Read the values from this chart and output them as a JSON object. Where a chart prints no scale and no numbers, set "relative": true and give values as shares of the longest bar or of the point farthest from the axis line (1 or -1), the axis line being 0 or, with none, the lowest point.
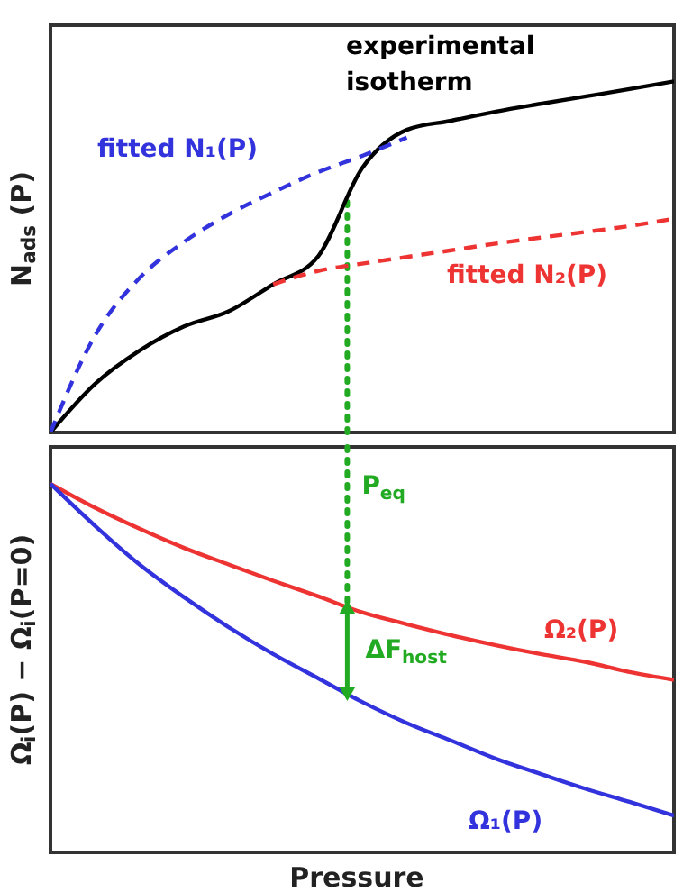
{
  "chart_data": [
    {
      "type": "line",
      "relative": true,
      "ylabel": "N$_{ads}$ (P)",
      "legend": false,
      "categories": [
        null,
        null,
        null,
        null,
        null,
        null,
        null,
        null,
        null,
        null,
        null,
        null,
        null,
        null,
        null
      ],
      "series": [
        {
          "name": "experimental isotherm",
          "color": "#000000",
          "line_style": "solid",
          "values": [
            0,
            0.138,
            0.233,
            0.302,
            0.345,
            0.422,
            0.5,
            0.753,
            0.862,
            0.888,
            0.914,
            0.936,
            0.957,
            0.978,
            1
          ]
        },
        {
          "name": "fitted N₁(P)",
          "color": "#3333dd",
          "line_style": "dashed",
          "values": [
            0,
            0.276,
            0.44,
            0.543,
            0.621,
            0.684,
            0.741,
            0.788,
            0.84,
            null,
            null,
            null,
            null,
            null,
            null
          ]
        },
        {
          "name": "fitted N₂(P)",
          "color": "#ee3333",
          "line_style": "dashed",
          "values": [
            null,
            null,
            null,
            null,
            null,
            0.422,
            0.46,
            0.481,
            0.5,
            0.519,
            0.538,
            0.555,
            0.571,
            0.588,
            0.609
          ]
        }
      ],
      "ref_lines": [
        {
          "axis": "x",
          "color": "#22aa22",
          "line_style": "dotted"
        }
      ]
    },
    {
      "type": "line",
      "relative": true,
      "ylabel": "Ω$_{i}$(P) − Ω$_{i}$(P=0)",
      "xlabel": "Pressure",
      "legend": false,
      "categories": [
        null,
        null,
        null,
        null,
        null,
        null,
        null,
        null,
        null,
        null,
        null,
        null,
        null,
        null,
        null
      ],
      "series": [
        {
          "name": "Ω₂(P)",
          "color": "#ee3333",
          "line_style": "solid",
          "values": [
            -0.1,
            -0.165,
            -0.222,
            -0.274,
            -0.319,
            -0.363,
            -0.405,
            -0.449,
            -0.481,
            -0.511,
            -0.538,
            -0.562,
            -0.583,
            -0.611,
            -0.632
          ]
        },
        {
          "name": "Ω₁(P)",
          "color": "#3333dd",
          "line_style": "solid",
          "values": [
            -0.1,
            -0.214,
            -0.319,
            -0.408,
            -0.489,
            -0.562,
            -0.627,
            -0.692,
            -0.749,
            -0.797,
            -0.846,
            -0.887,
            -0.927,
            -0.963,
            -1
          ]
        }
      ],
      "ref_lines": [
        {
          "axis": "x",
          "label": "P$_{eq}$",
          "color": "#22aa22",
          "line_style": "dotted"
        }
      ],
      "annotations": [
        "ΔF$_{host}$"
      ]
    }
  ]
}
